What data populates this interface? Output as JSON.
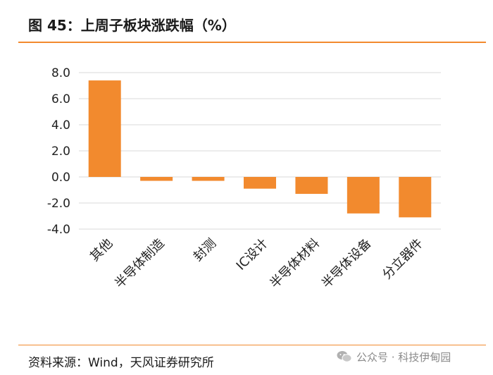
{
  "header": {
    "title": "图 45：上周子板块涨跌幅（%）"
  },
  "footer": {
    "source": "资料来源：Wind，天风证券研究所",
    "watermark": "公众号 · 科技伊甸园",
    "watermark_icon": "wechat-icon"
  },
  "colors": {
    "bar": "#F28A2E",
    "rule": "#F28A2E",
    "grid": "#D9D9D9"
  },
  "chart_data": {
    "type": "bar",
    "title": "图 45：上周子板块涨跌幅（%）",
    "categories": [
      "其他",
      "半导体制造",
      "封测",
      "IC设计",
      "半导体材料",
      "半导体设备",
      "分立器件"
    ],
    "values": [
      7.4,
      -0.3,
      -0.3,
      -0.9,
      -1.3,
      -2.8,
      -3.1
    ],
    "ylim": [
      -4.0,
      8.0
    ],
    "yticks": [
      8.0,
      6.0,
      4.0,
      2.0,
      0.0,
      -2.0,
      -4.0
    ],
    "ytick_labels": [
      "8.0",
      "6.0",
      "4.0",
      "2.0",
      "0.0",
      "-2.0",
      "-4.0"
    ],
    "grid": true,
    "legend": "none"
  }
}
